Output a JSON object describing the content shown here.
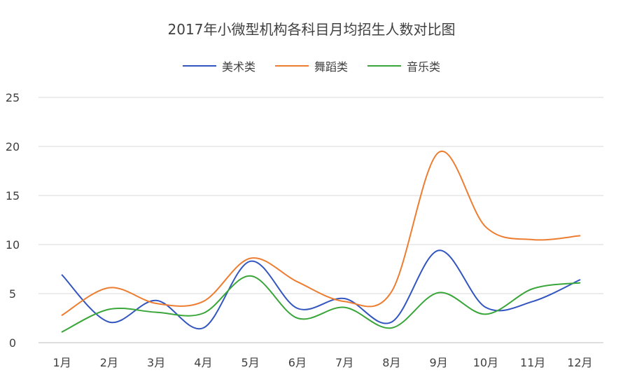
{
  "chart_data": {
    "type": "line",
    "title": "2017年小微型机构各科目月均招生人数对比图",
    "categories": [
      "1月",
      "2月",
      "3月",
      "4月",
      "5月",
      "6月",
      "7月",
      "8月",
      "9月",
      "10月",
      "11月",
      "12月"
    ],
    "y_ticks": [
      "0",
      "5",
      "10",
      "15",
      "20",
      "25"
    ],
    "ylim": [
      0,
      25
    ],
    "grid": true,
    "legend_position": "top",
    "smooth": true,
    "series": [
      {
        "name": "美术类",
        "color": "#3355c0",
        "values": [
          6.9,
          2.1,
          4.3,
          1.5,
          8.3,
          3.5,
          4.5,
          2.1,
          9.4,
          3.6,
          4.2,
          6.4
        ]
      },
      {
        "name": "舞蹈类",
        "color": "#ed7d31",
        "values": [
          2.8,
          5.6,
          4.0,
          4.2,
          8.6,
          6.2,
          4.2,
          5.2,
          19.4,
          11.8,
          10.5,
          10.9
        ]
      },
      {
        "name": "音乐类",
        "color": "#3aa63a",
        "values": [
          1.1,
          3.4,
          3.1,
          3.0,
          6.8,
          2.5,
          3.6,
          1.5,
          5.1,
          2.9,
          5.5,
          6.1
        ]
      }
    ]
  }
}
